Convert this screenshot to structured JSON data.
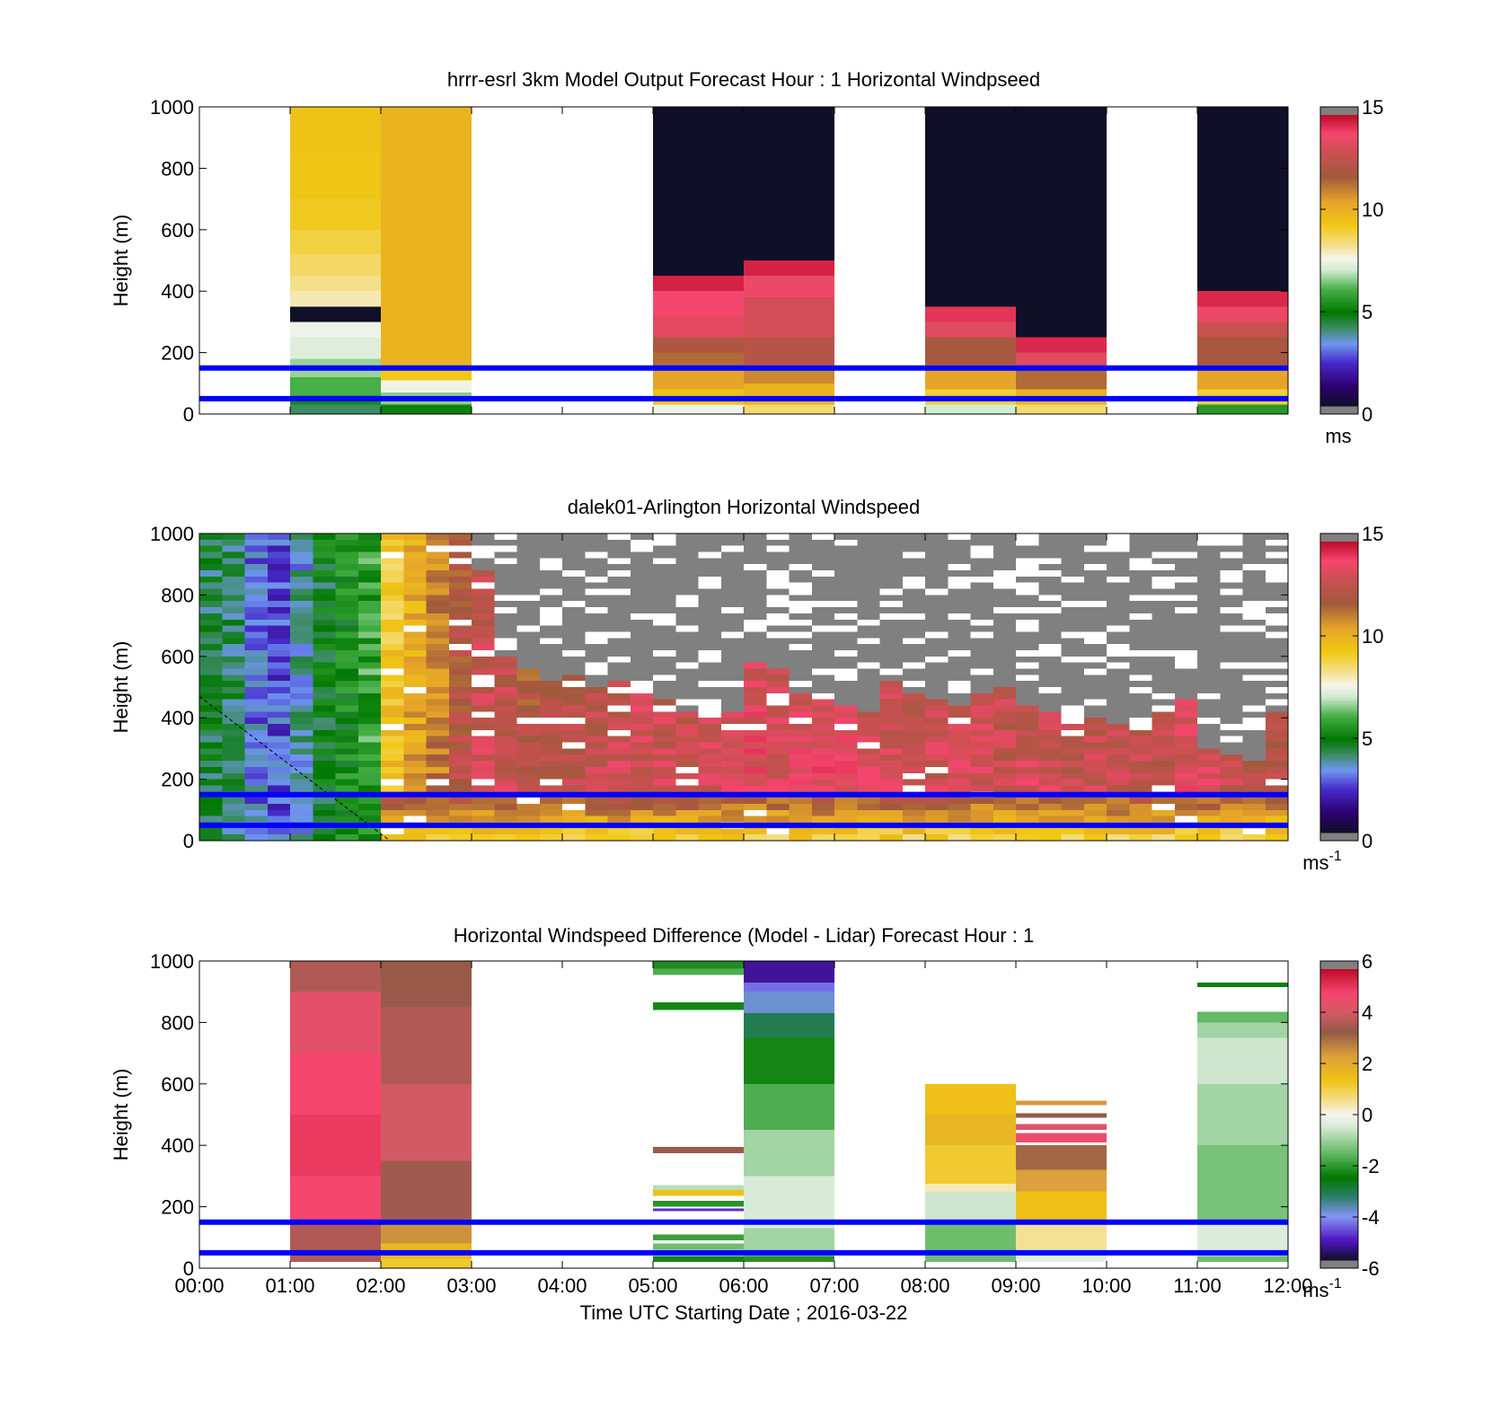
{
  "chart_data": [
    {
      "type": "heatmap",
      "title": "hrrr-esrl 3km Model Output   Forecast Hour : 1 Horizontal Windpseed",
      "xlabel": "",
      "ylabel": "Height (m)",
      "xlim": [
        0,
        12
      ],
      "ylim": [
        0,
        1000
      ],
      "yticks": [
        0,
        200,
        400,
        600,
        800,
        1000
      ],
      "xticks": [
        "00:00",
        "01:00",
        "02:00",
        "03:00",
        "04:00",
        "05:00",
        "06:00",
        "07:00",
        "08:00",
        "09:00",
        "10:00",
        "11:00",
        "12:00"
      ],
      "show_xtick_labels": false,
      "colorbar": {
        "ticks": [
          0,
          5,
          10,
          15
        ],
        "range": [
          0,
          15
        ],
        "unit": "ms",
        "unit_sup": ""
      },
      "reference_lines_m": [
        50,
        150
      ],
      "reference_line_color": "#0000ff",
      "columns": [
        {
          "x": 1,
          "segments": [
            {
              "from": 0,
              "to": 30,
              "v": 4.0
            },
            {
              "from": 30,
              "to": 60,
              "v": 5.2
            },
            {
              "from": 60,
              "to": 120,
              "v": 6.0
            },
            {
              "from": 120,
              "to": 180,
              "v": 6.6
            },
            {
              "from": 180,
              "to": 250,
              "v": 7.2
            },
            {
              "from": 250,
              "to": 300,
              "v": 7.5
            },
            {
              "from": 300,
              "to": 350,
              "v": -1
            },
            {
              "from": 350,
              "to": 400,
              "v": 8.0
            },
            {
              "from": 400,
              "to": 450,
              "v": 8.3
            },
            {
              "from": 450,
              "to": 520,
              "v": 8.6
            },
            {
              "from": 520,
              "to": 600,
              "v": 8.9
            },
            {
              "from": 600,
              "to": 700,
              "v": 9.2
            },
            {
              "from": 700,
              "to": 850,
              "v": 9.4
            },
            {
              "from": 850,
              "to": 1000,
              "v": 9.5
            }
          ]
        },
        {
          "x": 2,
          "segments": [
            {
              "from": 0,
              "to": 30,
              "v": 5.0
            },
            {
              "from": 30,
              "to": 70,
              "v": 6.5
            },
            {
              "from": 70,
              "to": 110,
              "v": 7.5
            },
            {
              "from": 110,
              "to": 150,
              "v": 9.3
            },
            {
              "from": 150,
              "to": 1000,
              "v": 10.0
            }
          ]
        },
        {
          "x": 5,
          "segments": [
            {
              "from": 0,
              "to": 30,
              "v": 7.5
            },
            {
              "from": 30,
              "to": 80,
              "v": 9.5
            },
            {
              "from": 80,
              "to": 150,
              "v": 10.5
            },
            {
              "from": 150,
              "to": 200,
              "v": 11.5
            },
            {
              "from": 200,
              "to": 250,
              "v": 12.2
            },
            {
              "from": 250,
              "to": 320,
              "v": 13.6
            },
            {
              "from": 320,
              "to": 400,
              "v": 14.0
            },
            {
              "from": 400,
              "to": 450,
              "v": 14.6
            },
            {
              "from": 450,
              "to": 1000,
              "v": -1
            }
          ]
        },
        {
          "x": 6,
          "segments": [
            {
              "from": 0,
              "to": 30,
              "v": 8.5
            },
            {
              "from": 30,
              "to": 100,
              "v": 10.0
            },
            {
              "from": 100,
              "to": 160,
              "v": 11.0
            },
            {
              "from": 160,
              "to": 250,
              "v": 12.5
            },
            {
              "from": 250,
              "to": 380,
              "v": 13.2
            },
            {
              "from": 380,
              "to": 450,
              "v": 13.8
            },
            {
              "from": 450,
              "to": 500,
              "v": 14.6
            },
            {
              "from": 500,
              "to": 1000,
              "v": -1
            }
          ]
        },
        {
          "x": 8,
          "segments": [
            {
              "from": 0,
              "to": 30,
              "v": 7.0
            },
            {
              "from": 30,
              "to": 80,
              "v": 9.0
            },
            {
              "from": 80,
              "to": 160,
              "v": 10.5
            },
            {
              "from": 160,
              "to": 250,
              "v": 12.0
            },
            {
              "from": 250,
              "to": 300,
              "v": 13.5
            },
            {
              "from": 300,
              "to": 350,
              "v": 14.3
            },
            {
              "from": 350,
              "to": 1000,
              "v": -1
            }
          ]
        },
        {
          "x": 9,
          "segments": [
            {
              "from": 0,
              "to": 30,
              "v": 8.5
            },
            {
              "from": 30,
              "to": 80,
              "v": 10.0
            },
            {
              "from": 80,
              "to": 150,
              "v": 11.5
            },
            {
              "from": 150,
              "to": 200,
              "v": 13.5
            },
            {
              "from": 200,
              "to": 250,
              "v": 14.5
            },
            {
              "from": 250,
              "to": 1000,
              "v": -1
            }
          ]
        },
        {
          "x": 11,
          "segments": [
            {
              "from": 0,
              "to": 30,
              "v": 5.5
            },
            {
              "from": 30,
              "to": 80,
              "v": 9.0
            },
            {
              "from": 80,
              "to": 160,
              "v": 10.5
            },
            {
              "from": 160,
              "to": 250,
              "v": 12.0
            },
            {
              "from": 250,
              "to": 300,
              "v": 13.0
            },
            {
              "from": 300,
              "to": 350,
              "v": 13.8
            },
            {
              "from": 350,
              "to": 400,
              "v": 14.5
            },
            {
              "from": 400,
              "to": 1000,
              "v": -1
            }
          ]
        }
      ]
    },
    {
      "type": "heatmap",
      "title": "dalek01-Arlington  Horizontal Windspeed",
      "xlabel": "",
      "ylabel": "Height (m)",
      "xlim": [
        0,
        12
      ],
      "ylim": [
        0,
        1000
      ],
      "yticks": [
        0,
        200,
        400,
        600,
        800,
        1000
      ],
      "xticks": [
        "00:00",
        "01:00",
        "02:00",
        "03:00",
        "04:00",
        "05:00",
        "06:00",
        "07:00",
        "08:00",
        "09:00",
        "10:00",
        "11:00",
        "12:00"
      ],
      "show_xtick_labels": false,
      "colorbar": {
        "ticks": [
          0,
          5,
          10,
          15
        ],
        "range": [
          0,
          15
        ],
        "unit": "ms",
        "unit_sup": "-1"
      },
      "reference_lines_m": [
        50,
        150
      ],
      "reference_line_color": "#0000ff",
      "time_step_h": 0.25,
      "first_time_h": 0,
      "last_time_h": 11.75,
      "column_base_speed_ms": [
        4.3,
        4.1,
        3.0,
        2.6,
        3.5,
        4.6,
        5.0,
        5.8,
        9.6,
        10.6,
        11.4,
        12.5,
        13.3,
        13.1,
        12.5,
        12.8,
        12.9,
        13.1,
        13.3,
        13.5,
        13.4,
        13.2,
        13.6,
        14.0,
        13.8,
        13.5,
        13.7,
        14.0,
        13.9,
        13.6,
        13.4,
        13.3,
        13.4,
        13.6,
        13.4,
        13.2,
        13.5,
        13.3,
        13.0,
        13.2,
        13.4,
        13.1,
        13.0,
        13.6,
        13.8,
        13.2,
        13.0,
        12.8
      ],
      "column_data_top_m": [
        1000,
        1000,
        1000,
        1000,
        1000,
        1000,
        1000,
        1000,
        1000,
        1000,
        1000,
        1000,
        880,
        600,
        560,
        520,
        540,
        500,
        520,
        470,
        450,
        420,
        390,
        420,
        580,
        560,
        480,
        450,
        430,
        420,
        510,
        480,
        460,
        440,
        470,
        500,
        430,
        410,
        380,
        400,
        370,
        350,
        410,
        460,
        300,
        270,
        260,
        420
      ],
      "dashed_line": {
        "from": [
          0,
          470
        ],
        "to": [
          2.1,
          0
        ]
      }
    },
    {
      "type": "heatmap",
      "title": "Horizontal Windspeed Difference (Model - Lidar) Forecast Hour : 1",
      "xlabel": "Time UTC  Starting Date ; 2016-03-22",
      "ylabel": "Height (m)",
      "xlim": [
        0,
        12
      ],
      "ylim": [
        0,
        1000
      ],
      "yticks": [
        0,
        200,
        400,
        600,
        800,
        1000
      ],
      "xticks": [
        "00:00",
        "01:00",
        "02:00",
        "03:00",
        "04:00",
        "05:00",
        "06:00",
        "07:00",
        "08:00",
        "09:00",
        "10:00",
        "11:00",
        "12:00"
      ],
      "show_xtick_labels": true,
      "colorbar": {
        "ticks": [
          -6,
          -4,
          -2,
          0,
          2,
          4,
          6
        ],
        "range": [
          -6,
          6
        ],
        "unit": "ms",
        "unit_sup": "-1"
      },
      "reference_lines_m": [
        50,
        150
      ],
      "reference_line_color": "#0000ff",
      "columns": [
        {
          "x": 1,
          "segments": [
            {
              "from": 20,
              "to": 150,
              "v": 3.8
            },
            {
              "from": 150,
              "to": 300,
              "v": 5.0
            },
            {
              "from": 300,
              "to": 500,
              "v": 5.2
            },
            {
              "from": 500,
              "to": 700,
              "v": 5.0
            },
            {
              "from": 700,
              "to": 900,
              "v": 4.6
            },
            {
              "from": 900,
              "to": 1000,
              "v": 3.8
            }
          ]
        },
        {
          "x": 2,
          "segments": [
            {
              "from": 0,
              "to": 30,
              "v": 1.2
            },
            {
              "from": 30,
              "to": 80,
              "v": 1.7
            },
            {
              "from": 80,
              "to": 160,
              "v": 2.6
            },
            {
              "from": 160,
              "to": 350,
              "v": 3.6
            },
            {
              "from": 350,
              "to": 600,
              "v": 4.2
            },
            {
              "from": 600,
              "to": 850,
              "v": 3.8
            },
            {
              "from": 850,
              "to": 1000,
              "v": 3.5
            }
          ]
        },
        {
          "x": 5,
          "segments": [
            {
              "from": 20,
              "to": 40,
              "v": -2.4
            },
            {
              "from": 60,
              "to": 80,
              "v": -1.5
            },
            {
              "from": 90,
              "to": 110,
              "v": -2.0
            },
            {
              "from": 185,
              "to": 195,
              "v": -5.0
            },
            {
              "from": 200,
              "to": 220,
              "v": -2.2
            },
            {
              "from": 235,
              "to": 255,
              "v": 1.5
            },
            {
              "from": 255,
              "to": 270,
              "v": -0.8
            },
            {
              "from": 375,
              "to": 395,
              "v": 3.5
            },
            {
              "from": 840,
              "to": 865,
              "v": -2.4
            },
            {
              "from": 955,
              "to": 975,
              "v": -1.8
            },
            {
              "from": 975,
              "to": 1000,
              "v": -2.3
            }
          ]
        },
        {
          "x": 6,
          "segments": [
            {
              "from": 20,
              "to": 40,
              "v": -2.2
            },
            {
              "from": 40,
              "to": 130,
              "v": -1.0
            },
            {
              "from": 130,
              "to": 300,
              "v": -0.5
            },
            {
              "from": 300,
              "to": 450,
              "v": -1.0
            },
            {
              "from": 450,
              "to": 600,
              "v": -1.8
            },
            {
              "from": 600,
              "to": 750,
              "v": -2.4
            },
            {
              "from": 750,
              "to": 830,
              "v": -3.2
            },
            {
              "from": 830,
              "to": 900,
              "v": -4.0
            },
            {
              "from": 900,
              "to": 930,
              "v": -4.5
            },
            {
              "from": 930,
              "to": 1000,
              "v": -5.4
            }
          ]
        },
        {
          "x": 8,
          "segments": [
            {
              "from": 20,
              "to": 150,
              "v": -1.5
            },
            {
              "from": 150,
              "to": 250,
              "v": -0.6
            },
            {
              "from": 250,
              "to": 275,
              "v": 0.3
            },
            {
              "from": 275,
              "to": 400,
              "v": 1.2
            },
            {
              "from": 400,
              "to": 500,
              "v": 1.8
            },
            {
              "from": 500,
              "to": 600,
              "v": 1.5
            }
          ]
        },
        {
          "x": 9,
          "segments": [
            {
              "from": 20,
              "to": 60,
              "v": -0.3
            },
            {
              "from": 60,
              "to": 150,
              "v": 0.5
            },
            {
              "from": 150,
              "to": 250,
              "v": 1.5
            },
            {
              "from": 250,
              "to": 320,
              "v": 2.4
            },
            {
              "from": 320,
              "to": 400,
              "v": 3.2
            },
            {
              "from": 410,
              "to": 440,
              "v": 4.8
            },
            {
              "from": 450,
              "to": 470,
              "v": 4.5
            },
            {
              "from": 490,
              "to": 505,
              "v": 3.5
            },
            {
              "from": 530,
              "to": 545,
              "v": 2.5
            }
          ]
        },
        {
          "x": 11,
          "segments": [
            {
              "from": 20,
              "to": 40,
              "v": -1.5
            },
            {
              "from": 40,
              "to": 150,
              "v": -0.4
            },
            {
              "from": 150,
              "to": 400,
              "v": -1.4
            },
            {
              "from": 400,
              "to": 600,
              "v": -1.0
            },
            {
              "from": 600,
              "to": 750,
              "v": -0.6
            },
            {
              "from": 750,
              "to": 800,
              "v": -1.0
            },
            {
              "from": 800,
              "to": 835,
              "v": -1.6
            },
            {
              "from": 915,
              "to": 930,
              "v": -2.5
            }
          ]
        }
      ]
    }
  ]
}
